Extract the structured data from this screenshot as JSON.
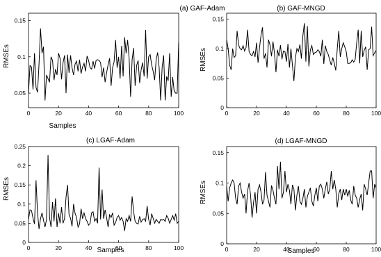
{
  "chart_data": [
    {
      "type": "line",
      "title": "(a) GAF-Adam",
      "xlabel": "Samples",
      "ylabel": "RMSEs",
      "xlim": [
        0,
        100
      ],
      "ylim": [
        0.03,
        0.16
      ],
      "xticks": [
        0,
        20,
        40,
        60,
        80,
        100
      ],
      "yticks": [
        0.05,
        0.1,
        0.15
      ],
      "ytick_labels": [
        "0.05",
        "0.1",
        "0.15"
      ],
      "grid": false,
      "series": [
        {
          "values": [
            0.05,
            0.088,
            0.086,
            0.055,
            0.105,
            0.058,
            0.051,
            0.09,
            0.139,
            0.105,
            0.114,
            0.04,
            0.075,
            0.07,
            0.065,
            0.1,
            0.095,
            0.068,
            0.083,
            0.075,
            0.105,
            0.098,
            0.069,
            0.092,
            0.102,
            0.05,
            0.103,
            0.078,
            0.102,
            0.085,
            0.075,
            0.09,
            0.094,
            0.08,
            0.096,
            0.077,
            0.086,
            0.091,
            0.08,
            0.101,
            0.095,
            0.085,
            0.083,
            0.094,
            0.084,
            0.095,
            0.096,
            0.095,
            0.092,
            0.072,
            0.085,
            0.065,
            0.078,
            0.089,
            0.098,
            0.06,
            0.085,
            0.093,
            0.123,
            0.085,
            0.1,
            0.07,
            0.115,
            0.073,
            0.127,
            0.105,
            0.123,
            0.098,
            0.045,
            0.096,
            0.112,
            0.06,
            0.088,
            0.095,
            0.064,
            0.082,
            0.092,
            0.073,
            0.137,
            0.07,
            0.1,
            0.103,
            0.089,
            0.08,
            0.068,
            0.096,
            0.106,
            0.085,
            0.04,
            0.086,
            0.102,
            0.04,
            0.073,
            0.067,
            0.105,
            0.045,
            0.072,
            0.053,
            0.05,
            0.05,
            0.12
          ]
        }
      ]
    },
    {
      "type": "line",
      "title": "(b) GAF-MNGD",
      "xlabel": "",
      "ylabel": "RMSEs",
      "xlim": [
        0,
        100
      ],
      "ylim": [
        0,
        0.16
      ],
      "xticks": [
        0,
        20,
        40,
        60,
        80,
        100
      ],
      "yticks": [
        0,
        0.05,
        0.1,
        0.15
      ],
      "ytick_labels": [
        "0",
        "0.05",
        "0.1",
        "0.15"
      ],
      "grid": false,
      "series": [
        {
          "values": [
            0.115,
            0.1,
            0.072,
            0.064,
            0.1,
            0.085,
            0.088,
            0.13,
            0.106,
            0.1,
            0.098,
            0.105,
            0.096,
            0.102,
            0.132,
            0.095,
            0.09,
            0.088,
            0.095,
            0.086,
            0.11,
            0.076,
            0.102,
            0.123,
            0.136,
            0.083,
            0.092,
            0.068,
            0.115,
            0.106,
            0.087,
            0.112,
            0.092,
            0.06,
            0.098,
            0.087,
            0.106,
            0.082,
            0.096,
            0.095,
            0.078,
            0.108,
            0.068,
            0.1,
            0.072,
            0.045,
            0.085,
            0.1,
            0.095,
            0.107,
            0.083,
            0.122,
            0.143,
            0.078,
            0.138,
            0.07,
            0.098,
            0.105,
            0.09,
            0.093,
            0.094,
            0.098,
            0.095,
            0.087,
            0.115,
            0.074,
            0.105,
            0.095,
            0.09,
            0.08,
            0.072,
            0.085,
            0.075,
            0.063,
            0.1,
            0.13,
            0.086,
            0.1,
            0.11,
            0.103,
            0.095,
            0.075,
            0.075,
            0.076,
            0.081,
            0.077,
            0.082,
            0.11,
            0.132,
            0.075,
            0.13,
            0.086,
            0.097,
            0.103,
            0.064,
            0.098,
            0.1,
            0.137,
            0.088,
            0.093,
            0.097
          ]
        }
      ]
    },
    {
      "type": "line",
      "title": "(c) LGAF-Adam",
      "xlabel": "Samples",
      "ylabel": "RMSEs",
      "xlim": [
        0,
        100
      ],
      "ylim": [
        0,
        0.25
      ],
      "xticks": [
        0,
        20,
        40,
        60,
        80,
        100
      ],
      "yticks": [
        0,
        0.05,
        0.1,
        0.15,
        0.2,
        0.25
      ],
      "ytick_labels": [
        "0",
        "0.05",
        "0.1",
        "0.15",
        "0.2",
        "0.25"
      ],
      "grid": false,
      "series": [
        {
          "values": [
            0.06,
            0.085,
            0.083,
            0.063,
            0.048,
            0.162,
            0.078,
            0.035,
            0.062,
            0.077,
            0.058,
            0.04,
            0.06,
            0.228,
            0.065,
            0.04,
            0.105,
            0.055,
            0.115,
            0.04,
            0.076,
            0.05,
            0.092,
            0.05,
            0.062,
            0.118,
            0.15,
            0.072,
            0.063,
            0.042,
            0.1,
            0.076,
            0.065,
            0.04,
            0.048,
            0.088,
            0.062,
            0.077,
            0.062,
            0.055,
            0.045,
            0.05,
            0.077,
            0.08,
            0.055,
            0.062,
            0.05,
            0.195,
            0.06,
            0.138,
            0.062,
            0.085,
            0.065,
            0.04,
            0.072,
            0.065,
            0.077,
            0.045,
            0.052,
            0.065,
            0.07,
            0.058,
            0.065,
            0.055,
            0.03,
            0.062,
            0.055,
            0.07,
            0.055,
            0.12,
            0.08,
            0.055,
            0.05,
            0.048,
            0.068,
            0.053,
            0.06,
            0.062,
            0.055,
            0.095,
            0.06,
            0.045,
            0.075,
            0.063,
            0.05,
            0.06,
            0.055,
            0.05,
            0.06,
            0.058,
            0.06,
            0.055,
            0.07,
            0.063,
            0.05,
            0.06,
            0.07,
            0.058,
            0.075,
            0.05,
            0.055
          ]
        }
      ]
    },
    {
      "type": "line",
      "title": "(d) LGAF-MNGD",
      "xlabel": "Samples",
      "ylabel": "RMSEs",
      "xlim": [
        0,
        100
      ],
      "ylim": [
        0,
        0.16
      ],
      "xticks": [
        0,
        20,
        40,
        60,
        80,
        100
      ],
      "yticks": [
        0,
        0.05,
        0.1,
        0.15
      ],
      "ytick_labels": [
        "0",
        "0.05",
        "0.1",
        "0.15"
      ],
      "grid": false,
      "series": [
        {
          "values": [
            0.095,
            0.07,
            0.092,
            0.1,
            0.105,
            0.1,
            0.075,
            0.065,
            0.095,
            0.1,
            0.085,
            0.075,
            0.082,
            0.05,
            0.087,
            0.1,
            0.08,
            0.043,
            0.068,
            0.085,
            0.05,
            0.09,
            0.097,
            0.085,
            0.065,
            0.072,
            0.118,
            0.08,
            0.07,
            0.06,
            0.096,
            0.088,
            0.075,
            0.065,
            0.128,
            0.09,
            0.135,
            0.075,
            0.085,
            0.12,
            0.085,
            0.098,
            0.088,
            0.065,
            0.097,
            0.09,
            0.055,
            0.08,
            0.095,
            0.07,
            0.065,
            0.075,
            0.09,
            0.06,
            0.078,
            0.085,
            0.092,
            0.07,
            0.062,
            0.08,
            0.092,
            0.07,
            0.095,
            0.098,
            0.09,
            0.075,
            0.09,
            0.102,
            0.082,
            0.09,
            0.12,
            0.09,
            0.105,
            0.09,
            0.06,
            0.082,
            0.09,
            0.072,
            0.09,
            0.08,
            0.09,
            0.078,
            0.088,
            0.072,
            0.065,
            0.095,
            0.08,
            0.075,
            0.06,
            0.073,
            0.082,
            0.055,
            0.098,
            0.09,
            0.08,
            0.1,
            0.12,
            0.12,
            0.075,
            0.098,
            0.092
          ]
        }
      ]
    }
  ]
}
